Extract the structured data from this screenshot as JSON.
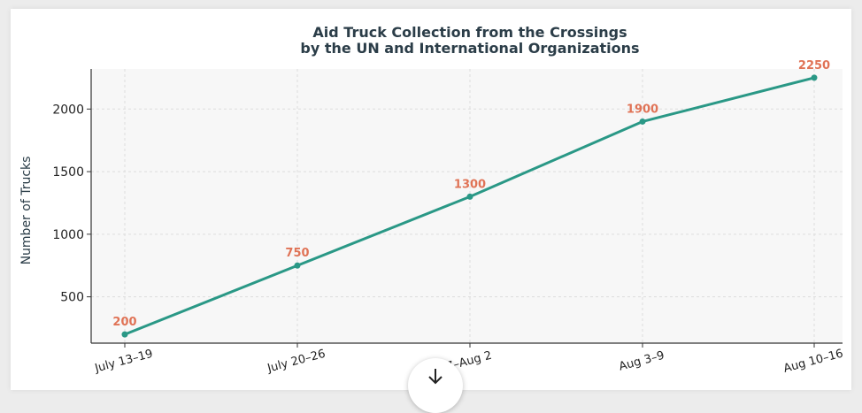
{
  "chart_data": {
    "type": "line",
    "title": [
      "Aid Truck Collection from the Crossings",
      "by the UN and International Organizations"
    ],
    "xlabel": "",
    "ylabel": "Number of Trucks",
    "categories": [
      "July 13–19",
      "July 20–26",
      "7–Aug 2",
      "Aug 3–9",
      "Aug 10–16"
    ],
    "values": [
      200,
      750,
      1300,
      1900,
      2250
    ],
    "yticks": [
      500,
      1000,
      1500,
      2000
    ],
    "ylim": [
      130,
      2320
    ],
    "grid": true,
    "colors": {
      "line": "#2a9886",
      "labels": "#e07356",
      "title": "#2b3d48",
      "plot_bg": "#f7f7f7"
    }
  },
  "ui": {
    "scroll_icon": "arrow-down-icon"
  }
}
